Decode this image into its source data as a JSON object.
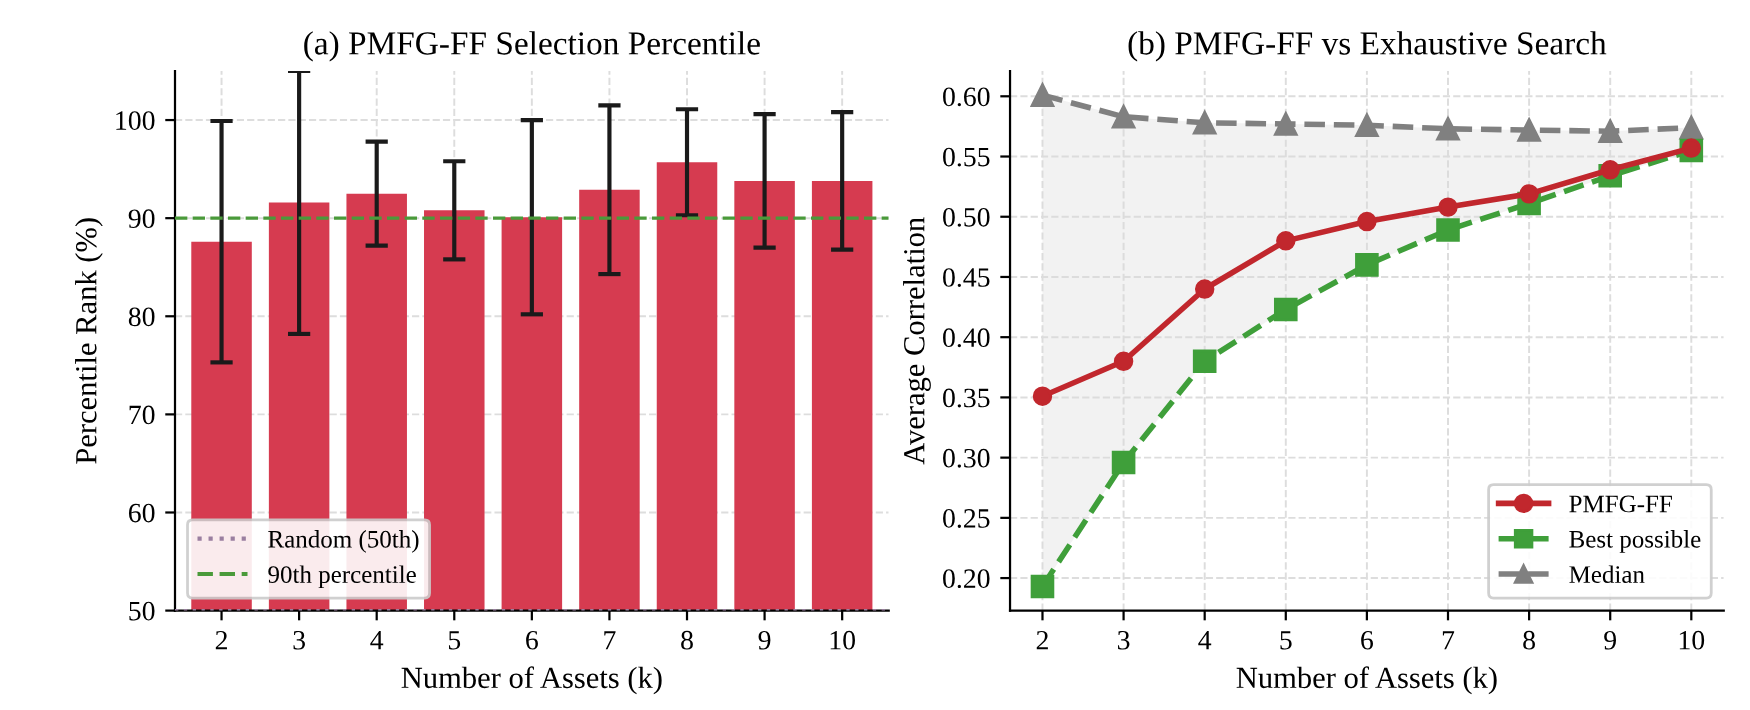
{
  "chart_data": [
    {
      "type": "bar",
      "title": "(a) PMFG-FF Selection Percentile",
      "xlabel": "Number of Assets (k)",
      "ylabel": "Percentile Rank (%)",
      "categories": [
        "2",
        "3",
        "4",
        "5",
        "6",
        "7",
        "8",
        "9",
        "10"
      ],
      "values": [
        87.6,
        91.6,
        92.5,
        90.8,
        90.1,
        92.9,
        95.7,
        93.8,
        93.8
      ],
      "errors": [
        12.3,
        13.4,
        5.3,
        5.0,
        9.9,
        8.6,
        5.4,
        6.8,
        7.0
      ],
      "color": "#d63b50",
      "ylim": [
        50,
        105
      ],
      "yticks": [
        50,
        60,
        70,
        80,
        90,
        100
      ],
      "grid": true,
      "legend": "bottom left",
      "ref_lines": [
        {
          "axis": "y",
          "value": 50,
          "label": "Random (50th)",
          "color": "#9a7fa0",
          "line_style": "dotted"
        },
        {
          "axis": "y",
          "value": 90,
          "label": "90th percentile",
          "color": "#4a9a3a",
          "line_style": "dashed"
        }
      ]
    },
    {
      "type": "line",
      "title": "(b) PMFG-FF vs Exhaustive Search",
      "xlabel": "Number of Assets (k)",
      "ylabel": "Average Correlation",
      "x": [
        2,
        3,
        4,
        5,
        6,
        7,
        8,
        9,
        10
      ],
      "series": [
        {
          "name": "PMFG-FF",
          "color": "#c1272d",
          "marker": "circle",
          "line_style": "solid",
          "values": [
            0.351,
            0.38,
            0.44,
            0.48,
            0.496,
            0.508,
            0.519,
            0.539,
            0.557
          ]
        },
        {
          "name": "Best possible",
          "color": "#3f9f3a",
          "marker": "square",
          "line_style": "dashed",
          "values": [
            0.193,
            0.296,
            0.38,
            0.423,
            0.46,
            0.489,
            0.511,
            0.534,
            0.555
          ]
        },
        {
          "name": "Median",
          "color": "#808080",
          "marker": "triangle",
          "line_style": "dashed",
          "values": [
            0.601,
            0.583,
            0.578,
            0.577,
            0.576,
            0.573,
            0.572,
            0.571,
            0.574
          ],
          "lower": [
            0.193,
            0.296,
            0.38,
            0.423,
            0.46,
            0.489,
            0.511,
            0.534,
            0.555
          ],
          "upper": [
            0.601,
            0.583,
            0.578,
            0.577,
            0.576,
            0.573,
            0.572,
            0.571,
            0.574
          ]
        }
      ],
      "xlim": [
        1.6,
        10.4
      ],
      "xticks": [
        2,
        3,
        4,
        5,
        6,
        7,
        8,
        9,
        10
      ],
      "ylim": [
        0.173,
        0.621
      ],
      "yticks": [
        {
          "value": 0.2,
          "label": "0.20"
        },
        {
          "value": 0.25,
          "label": "0.25"
        },
        {
          "value": 0.3,
          "label": "0.30"
        },
        {
          "value": 0.35,
          "label": "0.35"
        },
        {
          "value": 0.4,
          "label": "0.40"
        },
        {
          "value": 0.45,
          "label": "0.45"
        },
        {
          "value": 0.5,
          "label": "0.50"
        },
        {
          "value": 0.55,
          "label": "0.55"
        },
        {
          "value": 0.6,
          "label": "0.60"
        }
      ],
      "grid": true,
      "legend": "bottom right"
    }
  ]
}
